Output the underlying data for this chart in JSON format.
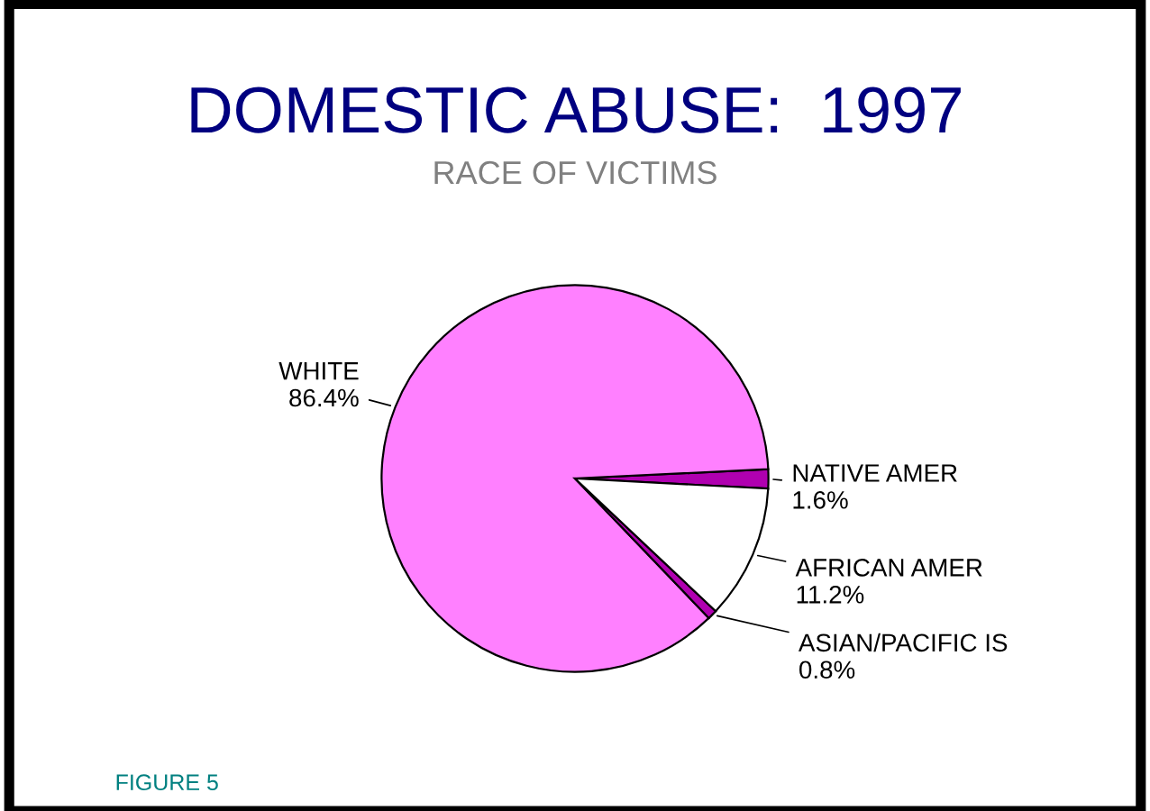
{
  "chart_data": {
    "type": "pie",
    "title": "DOMESTIC ABUSE:  1997",
    "subtitle": "RACE OF VICTIMS",
    "categories": [
      "NATIVE AMER",
      "WHITE",
      "ASIAN/PACIFIC IS",
      "AFRICAN AMER"
    ],
    "values": [
      1.6,
      86.4,
      0.8,
      11.2
    ],
    "value_labels": [
      "1.6%",
      "86.4%",
      "0.8%",
      "11.2%"
    ],
    "colors": [
      "#b000b0",
      "#ff80ff",
      "#b000b0",
      "#ffffff"
    ],
    "annotations": [
      "FIGURE 5"
    ]
  }
}
